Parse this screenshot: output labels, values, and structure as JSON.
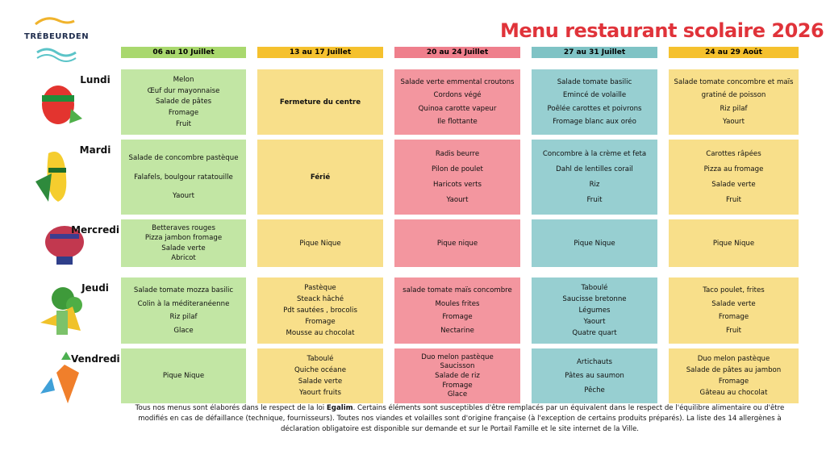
{
  "logo": {
    "name": "TRÉBEURDEN"
  },
  "title": "Menu restaurant scolaire 2026",
  "weeks": [
    {
      "label": "06 au 10 Juillet",
      "color": "#a9d86e",
      "cell_color": "#c2e6a4"
    },
    {
      "label": "13 au 17 Juillet",
      "color": "#f5c12e",
      "cell_color": "#f8df8a"
    },
    {
      "label": "20 au 24 Juillet",
      "color": "#ef7f8c",
      "cell_color": "#f3969f"
    },
    {
      "label": "27 au 31 Juillet",
      "color": "#7fc3c5",
      "cell_color": "#97cfd1"
    },
    {
      "label": "24 au 29 Août",
      "color": "#f5c12e",
      "cell_color": "#f8df8a"
    }
  ],
  "rows": [
    {
      "day": "Lundi",
      "cells": [
        [
          "Melon",
          "Œuf dur mayonnaise",
          "Salade de pâtes",
          "Fromage",
          "Fruit"
        ],
        [
          "Fermeture du centre"
        ],
        [
          "Salade verte emmental croutons",
          "Cordons végé",
          "Quinoa carotte vapeur",
          "Ile flottante"
        ],
        [
          "Salade tomate basilic",
          "Emincé de volaille",
          "Poêlée carottes et poivrons",
          "Fromage blanc aux oréo"
        ],
        [
          "Salade tomate concombre et maïs",
          "gratiné de poisson",
          "Riz pilaf",
          "Yaourt"
        ]
      ]
    },
    {
      "day": "Mardi",
      "cells": [
        [
          "Salade de concombre pastèque",
          "Falafels, boulgour ratatouille",
          "Yaourt"
        ],
        [
          "Férié"
        ],
        [
          "Radis beurre",
          "Pilon de poulet",
          "Haricots verts",
          "Yaourt"
        ],
        [
          "Concombre à la crème et feta",
          "Dahl de lentilles corail",
          "Riz",
          "Fruit"
        ],
        [
          "Carottes râpées",
          "Pizza au fromage",
          "Salade verte",
          "Fruit"
        ]
      ]
    },
    {
      "day": "Mercredi",
      "cells": [
        [
          "Betteraves rouges",
          "Pizza jambon fromage",
          "Salade verte",
          "Abricot"
        ],
        [
          "Pique  Nique"
        ],
        [
          "Pique nique"
        ],
        [
          "Pique Nique"
        ],
        [
          "Pique Nique"
        ]
      ]
    },
    {
      "day": "Jeudi",
      "cells": [
        [
          "Salade tomate mozza basilic",
          "Colin à la méditeranéenne",
          "Riz pilaf",
          "Glace"
        ],
        [
          "Pastèque",
          "Steack hâché",
          "Pdt sautées , brocolis",
          "Fromage",
          "Mousse au chocolat"
        ],
        [
          "salade tomate maïs concombre",
          "Moules frites",
          "Fromage",
          "Nectarine"
        ],
        [
          "Taboulé",
          "Saucisse bretonne",
          "Légumes",
          "Yaourt",
          "Quatre quart"
        ],
        [
          "Taco poulet, frites",
          "Salade verte",
          "Fromage",
          "Fruit"
        ]
      ]
    },
    {
      "day": "Vendredi",
      "cells": [
        [
          "Pique Nique"
        ],
        [
          "Taboulé",
          "Quiche océane",
          "Salade verte",
          "Yaourt fruits"
        ],
        [
          "Duo melon pastèque",
          "Saucisson",
          "Salade de riz",
          "Fromage",
          "Glace"
        ],
        [
          "Artichauts",
          "Pâtes au saumon",
          "Pêche"
        ],
        [
          "Duo melon pastèque",
          "Salade de pâtes au jambon",
          "Fromage",
          "Gâteau au chocolat"
        ]
      ]
    }
  ],
  "footer": {
    "before": "Tous nos menus sont élaborés dans le respect de la loi ",
    "bold": "Egalim",
    "after": ". Certains éléments sont susceptibles d'être remplacés par un équivalent dans le respect de l'équilibre alimentaire ou d'être modifiés en cas de défaillance (technique, fournisseurs). Toutes nos viandes et volailles sont d'origine française (à l'exception de certains produits préparés). La liste des 14 allergènes à déclaration obligatoire est disponible sur demande et sur le Portail Famille et le site internet de la Ville."
  }
}
